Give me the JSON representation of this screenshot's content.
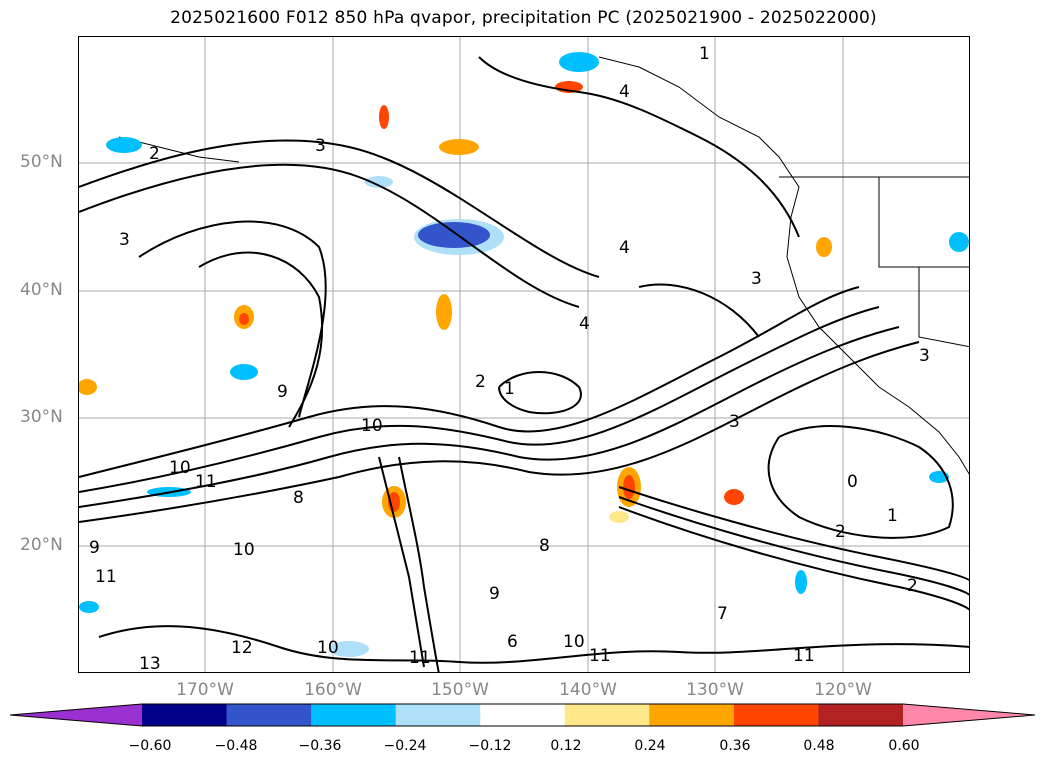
{
  "title": "2025021600 F012 850 hPa qvapor, precipitation PC (2025021900 - 2025022000)",
  "map": {
    "lat_labels": [
      "50°N",
      "40°N",
      "30°N",
      "20°N"
    ],
    "lon_labels": [
      "170°W",
      "160°W",
      "150°W",
      "140°W",
      "130°W",
      "120°W"
    ],
    "contour_labels": [
      "3",
      "2",
      "1",
      "4",
      "4",
      "1",
      "3",
      "4",
      "3",
      "2",
      "3",
      "9",
      "10",
      "11",
      "10",
      "8",
      "9",
      "10",
      "11",
      "13",
      "12",
      "10",
      "11",
      "10",
      "11",
      "11",
      "2",
      "0",
      "1",
      "2",
      "3",
      "7",
      "6",
      "8",
      "9"
    ]
  },
  "colorbar": {
    "ticks": [
      "−0.60",
      "−0.48",
      "−0.36",
      "−0.24",
      "−0.12",
      "0.12",
      "0.24",
      "0.36",
      "0.48",
      "0.60"
    ],
    "colors": [
      "#9b30d0",
      "#00008b",
      "#3355cc",
      "#00bfff",
      "#aee0fa",
      "#ffffff",
      "#ffe88a",
      "#ffa500",
      "#ff4500",
      "#b22222",
      "#ff88aa"
    ]
  }
}
